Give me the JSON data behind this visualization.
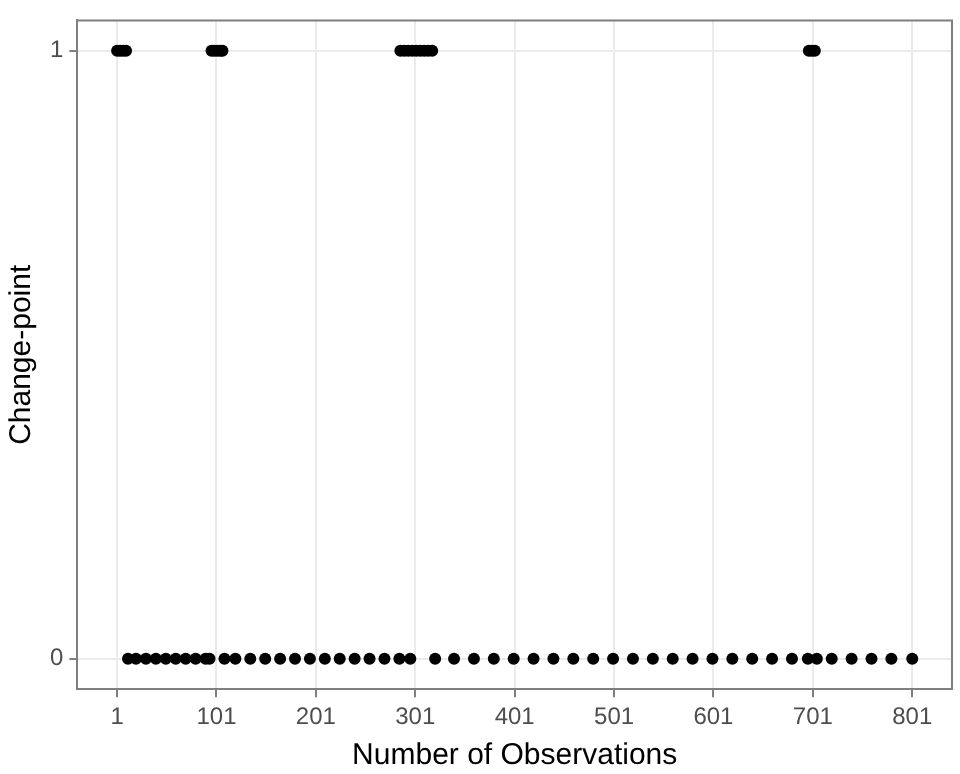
{
  "chart_data": {
    "type": "scatter",
    "xlabel": "Number of Observations",
    "ylabel": "Change-point",
    "x": [
      1,
      4,
      7,
      10,
      12,
      20,
      30,
      40,
      50,
      60,
      70,
      80,
      90,
      94,
      96,
      99,
      102,
      105,
      107,
      109,
      120,
      135,
      150,
      165,
      180,
      195,
      210,
      225,
      240,
      255,
      270,
      285,
      296,
      286,
      290,
      294,
      298,
      302,
      306,
      310,
      314,
      318,
      321,
      340,
      360,
      380,
      400,
      420,
      440,
      460,
      480,
      500,
      520,
      540,
      560,
      580,
      600,
      620,
      640,
      660,
      680,
      696,
      697,
      700,
      703,
      705,
      720,
      740,
      760,
      780,
      801
    ],
    "values": [
      1,
      1,
      1,
      1,
      0,
      0,
      0,
      0,
      0,
      0,
      0,
      0,
      0,
      0,
      1,
      1,
      1,
      1,
      1,
      0,
      0,
      0,
      0,
      0,
      0,
      0,
      0,
      0,
      0,
      0,
      0,
      0,
      0,
      1,
      1,
      1,
      1,
      1,
      1,
      1,
      1,
      1,
      0,
      0,
      0,
      0,
      0,
      0,
      0,
      0,
      0,
      0,
      0,
      0,
      0,
      0,
      0,
      0,
      0,
      0,
      0,
      0,
      1,
      1,
      1,
      0,
      0,
      0,
      0,
      0,
      0
    ],
    "color": "#000000",
    "marker": "circle",
    "grid": true,
    "xlim": [
      -39,
      841
    ],
    "xticks": [
      1,
      101,
      201,
      301,
      401,
      501,
      601,
      701,
      801
    ],
    "ylim": [
      -0.05,
      1.05
    ],
    "yticks": [
      0,
      1
    ]
  }
}
